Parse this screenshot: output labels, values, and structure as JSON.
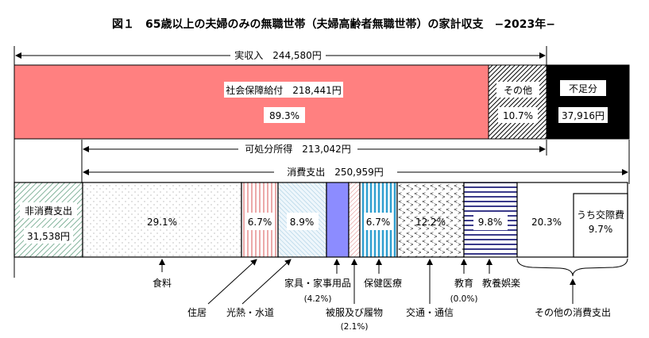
{
  "title": "図１　65歳以上の夫婦のみの無職世帯（夫婦高齢者無職世帯）の家計収支　−2023年−",
  "income": {
    "total_label": "実収入　244,580円",
    "social_security_label": "社会保障給付　218,441円",
    "social_security_pct": "89.3%",
    "other_label": "その他",
    "other_pct": "10.7%",
    "shortfall_label": "不足分",
    "shortfall_value": "37,916円"
  },
  "disposable_label": "可処分所得　213,042円",
  "consumption_label": "消費支出　250,959円",
  "expenditure": {
    "non_consumption_label": "非消費支出",
    "non_consumption_value": "31,538円",
    "segments": [
      {
        "name": "食料",
        "pct": "29.1%"
      },
      {
        "name": "住居",
        "pct": "6.7%"
      },
      {
        "name": "光熱・水道",
        "pct": "8.9%"
      },
      {
        "name": "家具・家事用品",
        "pct": "(4.2%)"
      },
      {
        "name": "被服及び履物",
        "pct": "(2.1%)"
      },
      {
        "name": "保健医療",
        "pct": "6.7%"
      },
      {
        "name": "交通・通信",
        "pct": "12.2%"
      },
      {
        "name": "教育",
        "pct": "(0.0%)"
      },
      {
        "name": "教養娯楽",
        "pct": "9.8%"
      },
      {
        "name": "その他の消費支出",
        "pct": "20.3%"
      }
    ],
    "social_label": "うち交際費",
    "social_pct": "9.7%"
  },
  "colors": {
    "social_security": "#ff8080",
    "shortfall": "#000000",
    "furniture": "#8c8cff",
    "medical": "#2f9fd0",
    "recreation": "#3a3a8a"
  }
}
